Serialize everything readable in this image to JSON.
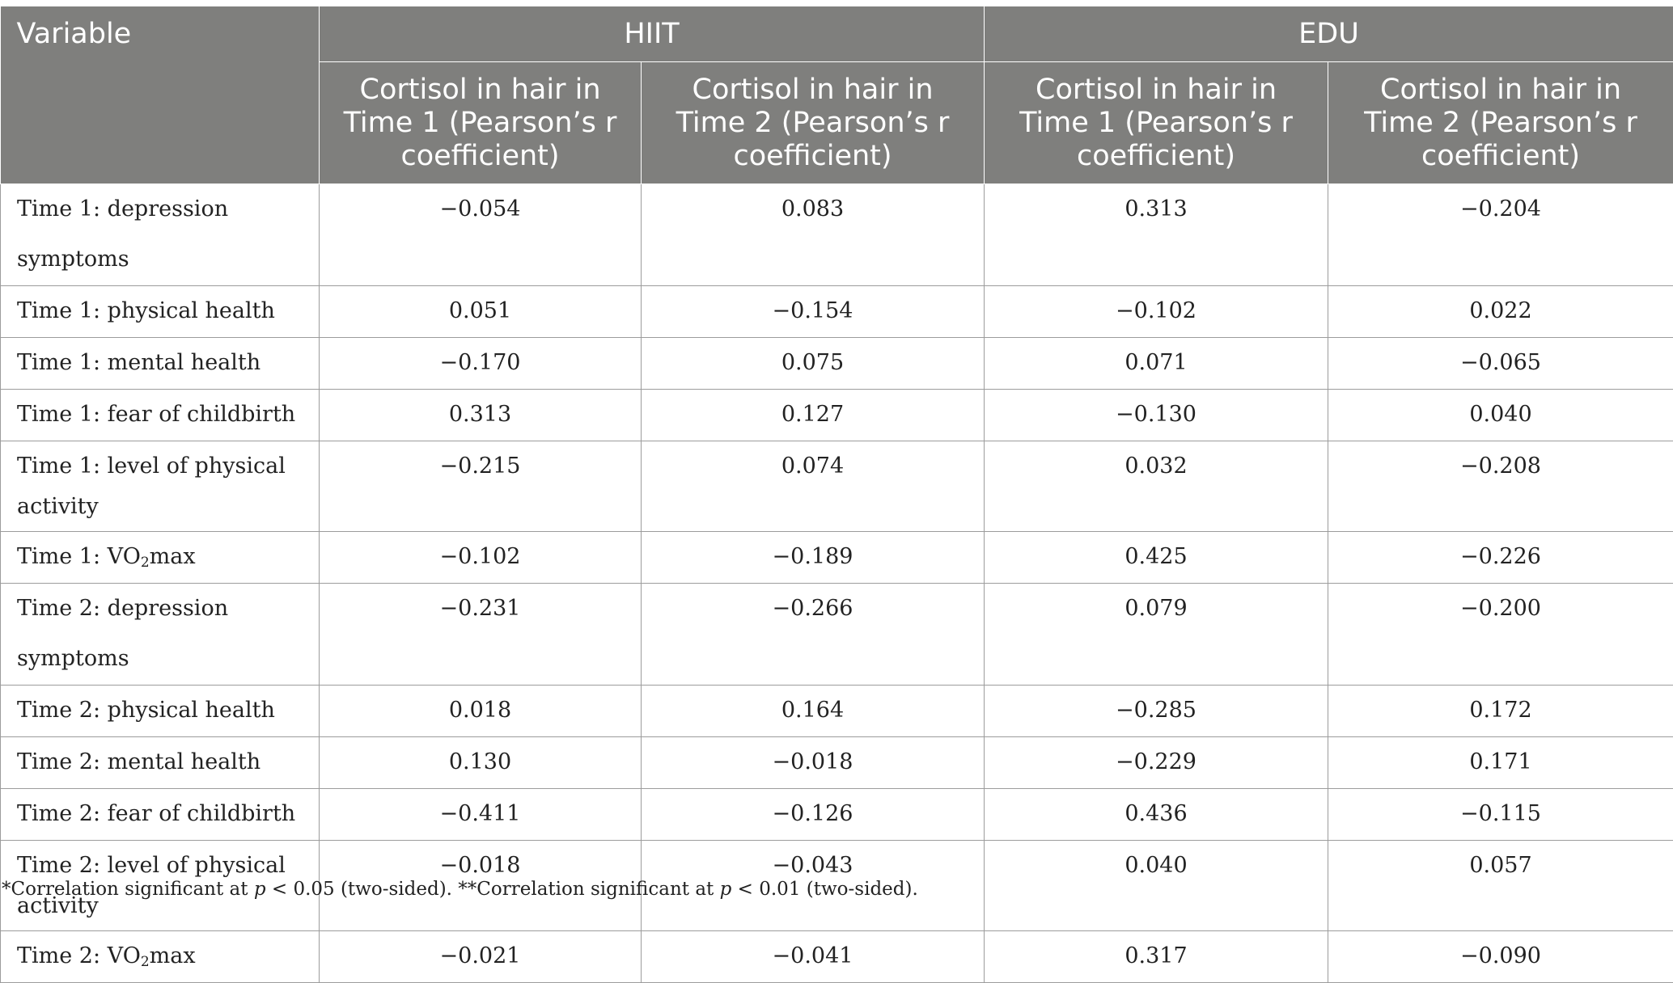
{
  "table": {
    "header": {
      "variable": "Variable",
      "groups": [
        "HIIT",
        "EDU"
      ],
      "columns": [
        "Cortisol in hair in Time 1 (Pearson’s r coefficient)",
        "Cortisol in hair in Time 2 (Pearson’s r coefficient)",
        "Cortisol in hair in Time 1 (Pearson’s r coefficient)",
        "Cortisol in hair in Time 2 (Pearson’s r coefficient)"
      ]
    },
    "rows": [
      {
        "label": "Time 1: depression symptoms",
        "values": [
          "−0.054",
          "0.083",
          "0.313",
          "−0.204"
        ]
      },
      {
        "label": "Time 1: physical health",
        "values": [
          "0.051",
          "−0.154",
          "−0.102",
          "0.022"
        ]
      },
      {
        "label": "Time 1: mental health",
        "values": [
          "−0.170",
          "0.075",
          "0.071",
          "−0.065"
        ]
      },
      {
        "label": "Time 1: fear of childbirth",
        "values": [
          "0.313",
          "0.127",
          "−0.130",
          "0.040"
        ]
      },
      {
        "label": "Time 1: level of physical activity",
        "values": [
          "−0.215",
          "0.074",
          "0.032",
          "−0.208"
        ]
      },
      {
        "label_pre": "Time 1: VO",
        "label_sub": "2",
        "label_post": "max",
        "values": [
          "−0.102",
          "−0.189",
          "0.425",
          "−0.226"
        ]
      },
      {
        "label": "Time 2: depression symptoms",
        "values": [
          "−0.231",
          "−0.266",
          "0.079",
          "−0.200"
        ]
      },
      {
        "label": "Time 2: physical health",
        "values": [
          "0.018",
          "0.164",
          "−0.285",
          "0.172"
        ]
      },
      {
        "label": "Time 2: mental health",
        "values": [
          "0.130",
          "−0.018",
          "−0.229",
          "0.171"
        ]
      },
      {
        "label": "Time 2: fear of childbirth",
        "values": [
          "−0.411",
          "−0.126",
          "0.436",
          "−0.115"
        ]
      },
      {
        "label": "Time 2: level of physical activity",
        "values": [
          "−0.018",
          "−0.043",
          "0.040",
          "0.057"
        ]
      },
      {
        "label_pre": "Time 2: VO",
        "label_sub": "2",
        "label_post": "max",
        "values": [
          "−0.021",
          "−0.041",
          "0.317",
          "−0.090"
        ]
      }
    ]
  },
  "footnote": {
    "part1": "*Correlation significant at ",
    "p1": "p",
    "part2": " < 0.05 (two-sided). **Correlation significant at ",
    "p2": "p",
    "part3": " < 0.01 (two-sided)."
  }
}
